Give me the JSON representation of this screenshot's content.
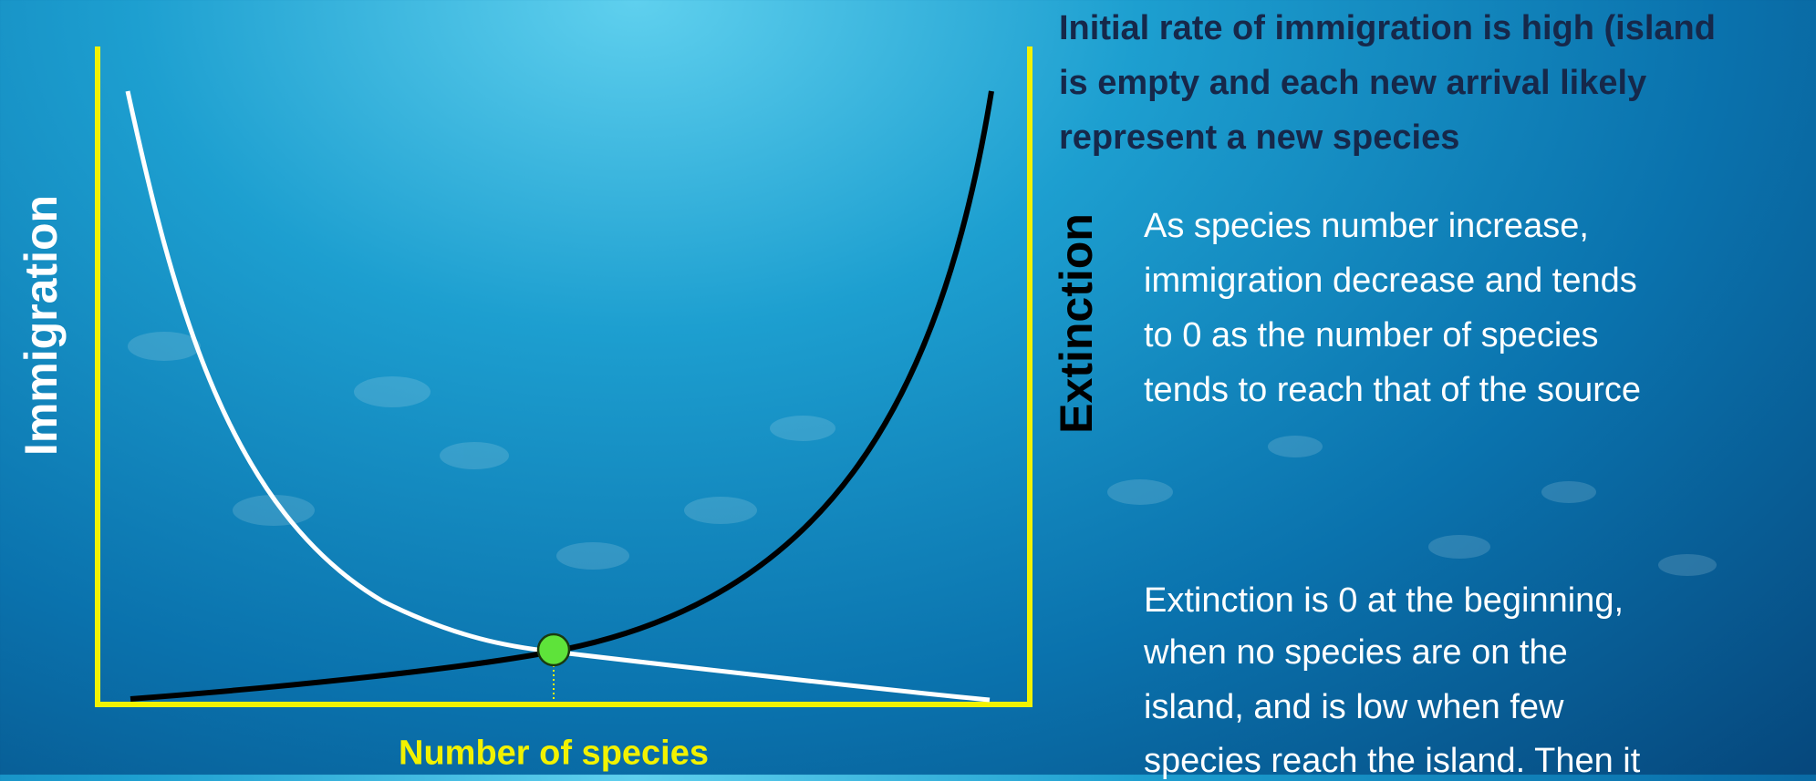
{
  "diagram": {
    "y_axis_left_label": "Immigration",
    "y_axis_right_label": "Extinction",
    "x_axis_label": "Number of species"
  },
  "heading": {
    "lines": [
      "Initial rate of immigration is high (island",
      "is empty and each new arrival likely",
      "represent a new species"
    ]
  },
  "paragraph_1": {
    "lines": [
      "As species number increase,",
      "immigration decrease and tends",
      "to 0 as the number of species",
      "tends to reach that of the source"
    ]
  },
  "paragraph_2": {
    "lines": [
      "Extinction is 0 at the beginning,",
      "when no species are on the",
      "island, and is low when few",
      "species reach the island. Then it"
    ]
  }
}
